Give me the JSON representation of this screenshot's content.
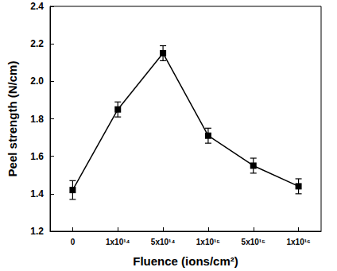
{
  "chart_data": {
    "type": "line",
    "x_label": "Fluence (ions/cm²)",
    "y_label": "Peel strength (N/cm)",
    "categories": [
      "0",
      "1x10¹⁴",
      "5x10¹⁴",
      "1x10¹⁵",
      "5x10¹⁵",
      "1x10¹⁶"
    ],
    "values": [
      1.42,
      1.85,
      2.15,
      1.71,
      1.55,
      1.44
    ],
    "errors": [
      0.05,
      0.04,
      0.04,
      0.04,
      0.04,
      0.04
    ],
    "color": "#000000",
    "marker": "square",
    "line_style": "solid",
    "ylim": [
      1.2,
      2.4
    ],
    "yticks": [
      1.2,
      1.4,
      1.6,
      1.8,
      {
        "value": 2.0,
        "label": "2.0"
      },
      2.2,
      2.4
    ],
    "grid": false
  }
}
